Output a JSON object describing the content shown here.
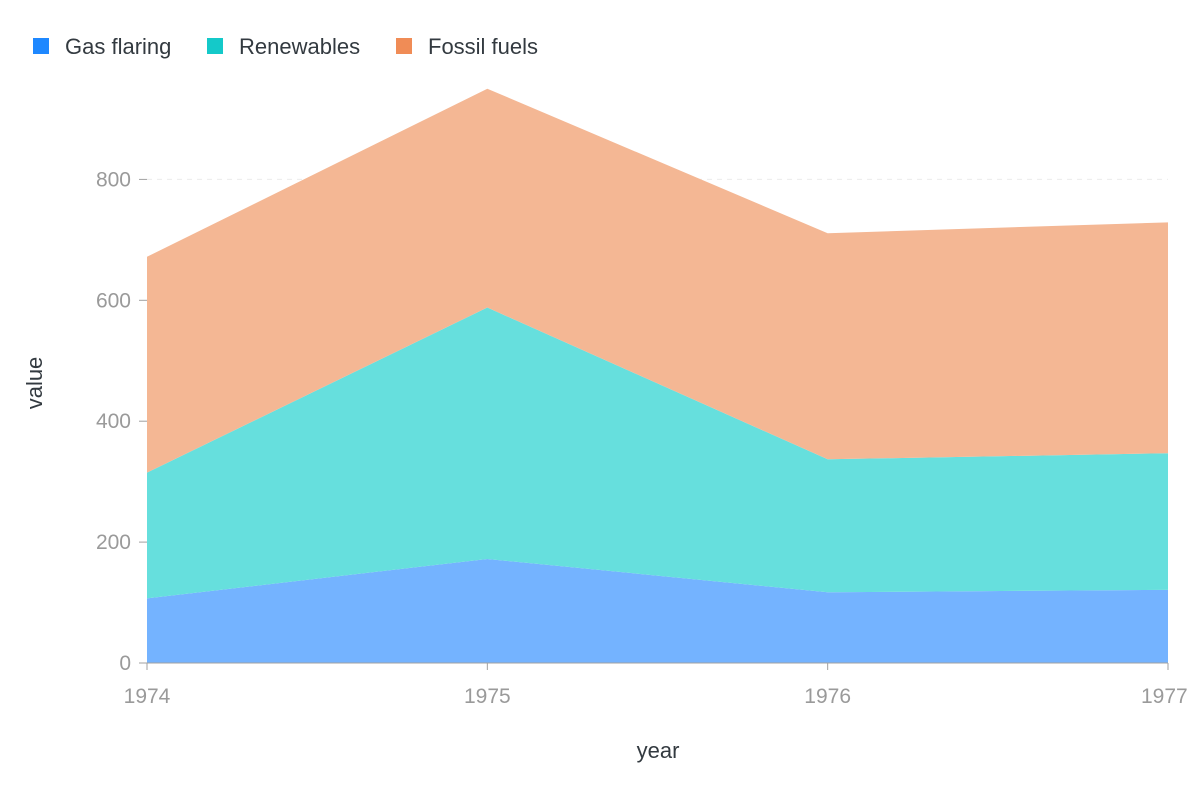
{
  "chart_data": {
    "type": "area",
    "stacked": true,
    "x": [
      "1974",
      "1975",
      "1976",
      "1977"
    ],
    "series": [
      {
        "name": "Gas flaring",
        "values": [
          107,
          172,
          117,
          121
        ],
        "color": "#1e88ff",
        "fill": "#74b3ff"
      },
      {
        "name": "Renewables",
        "values": [
          208,
          416,
          220,
          226
        ],
        "color": "#14c9c9",
        "fill": "#66dfdd"
      },
      {
        "name": "Fossil fuels",
        "values": [
          357,
          362,
          374,
          382
        ],
        "color": "#f08c56",
        "fill": "#f4b794"
      }
    ],
    "xlabel": "year",
    "ylabel": "value",
    "ylim": [
      0,
      950
    ],
    "yticks": [
      "0",
      "200",
      "400",
      "600",
      "800"
    ],
    "grid": "horizontal dashed",
    "legend": "top-left"
  }
}
